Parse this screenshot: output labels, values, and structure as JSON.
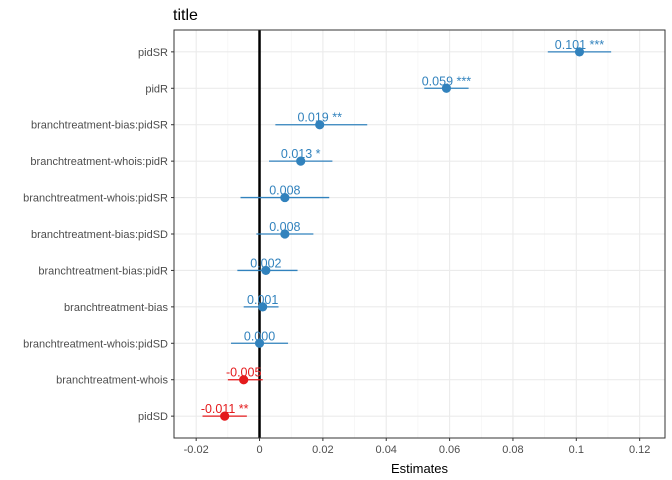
{
  "chart_data": {
    "type": "scatter",
    "title": "title",
    "xlabel": "Estimates",
    "ylabel": "",
    "xlim": [
      -0.027,
      0.128
    ],
    "x_ticks": [
      -0.02,
      0,
      0.02,
      0.04,
      0.06,
      0.08,
      0.1,
      0.12
    ],
    "x_tick_labels": [
      "-0.02",
      "0",
      "0.02",
      "0.04",
      "0.06",
      "0.08",
      "0.1",
      "0.12"
    ],
    "reference_line": 0,
    "grid": true,
    "legend": "none",
    "colors": {
      "positive": "#3182bd",
      "negative": "#e41a1c"
    },
    "terms": [
      {
        "term": "pidSR",
        "estimate": 0.101,
        "ci_low": 0.091,
        "ci_high": 0.111,
        "label": "0.101 ***",
        "sign": "positive"
      },
      {
        "term": "pidR",
        "estimate": 0.059,
        "ci_low": 0.052,
        "ci_high": 0.066,
        "label": "0.059 ***",
        "sign": "positive"
      },
      {
        "term": "branchtreatment-bias:pidSR",
        "estimate": 0.019,
        "ci_low": 0.005,
        "ci_high": 0.034,
        "label": "0.019 **",
        "sign": "positive"
      },
      {
        "term": "branchtreatment-whois:pidR",
        "estimate": 0.013,
        "ci_low": 0.003,
        "ci_high": 0.023,
        "label": "0.013 *",
        "sign": "positive"
      },
      {
        "term": "branchtreatment-whois:pidSR",
        "estimate": 0.008,
        "ci_low": -0.006,
        "ci_high": 0.022,
        "label": "0.008",
        "sign": "positive"
      },
      {
        "term": "branchtreatment-bias:pidSD",
        "estimate": 0.008,
        "ci_low": -0.001,
        "ci_high": 0.017,
        "label": "0.008",
        "sign": "positive"
      },
      {
        "term": "branchtreatment-bias:pidR",
        "estimate": 0.002,
        "ci_low": -0.007,
        "ci_high": 0.012,
        "label": "0.002",
        "sign": "positive"
      },
      {
        "term": "branchtreatment-bias",
        "estimate": 0.001,
        "ci_low": -0.005,
        "ci_high": 0.006,
        "label": "0.001",
        "sign": "positive"
      },
      {
        "term": "branchtreatment-whois:pidSD",
        "estimate": 0.0,
        "ci_low": -0.009,
        "ci_high": 0.009,
        "label": "0.000",
        "sign": "positive"
      },
      {
        "term": "branchtreatment-whois",
        "estimate": -0.005,
        "ci_low": -0.01,
        "ci_high": 0.001,
        "label": "-0.005",
        "sign": "negative"
      },
      {
        "term": "pidSD",
        "estimate": -0.011,
        "ci_low": -0.018,
        "ci_high": -0.004,
        "label": "-0.011 **",
        "sign": "negative"
      }
    ]
  }
}
